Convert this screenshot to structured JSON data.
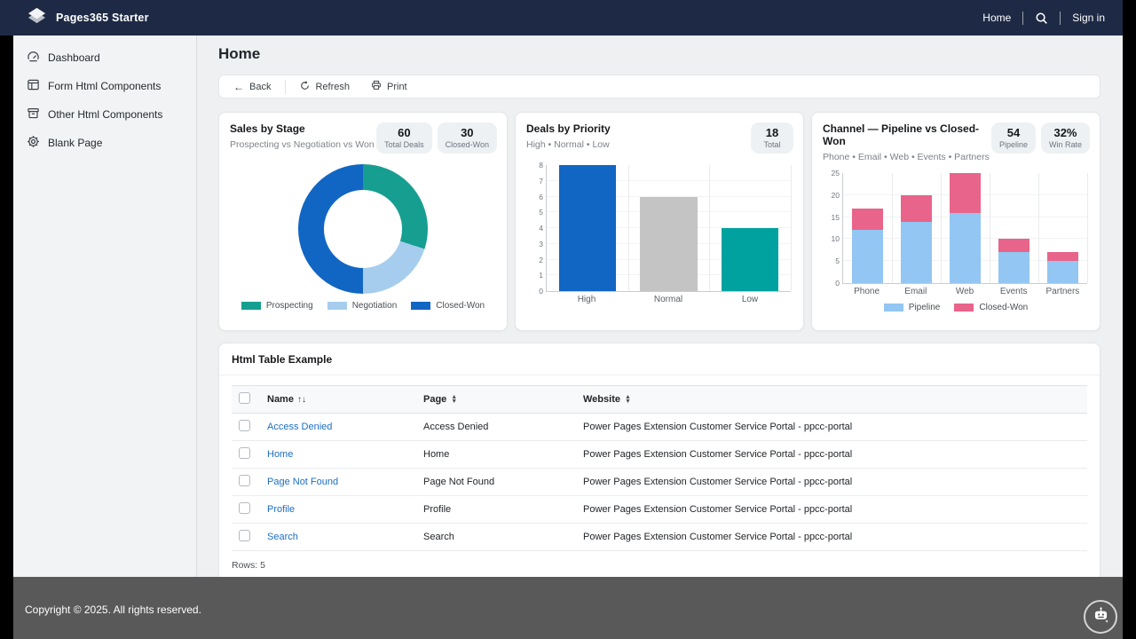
{
  "navbar": {
    "brand": "Pages365 Starter",
    "home_link": "Home",
    "signin_link": "Sign in"
  },
  "sidebar": {
    "items": [
      {
        "label": "Dashboard"
      },
      {
        "label": "Form Html Components"
      },
      {
        "label": "Other Html Components"
      },
      {
        "label": "Blank Page"
      }
    ]
  },
  "page": {
    "title": "Home",
    "toolbar": {
      "back": "Back",
      "refresh": "Refresh",
      "print": "Print"
    }
  },
  "chart_data": [
    {
      "type": "pie",
      "donut": true,
      "title": "Sales by Stage",
      "subtitle": "Prospecting vs Negotiation vs Won",
      "badges": [
        {
          "value": "60",
          "label": "Total Deals"
        },
        {
          "value": "30",
          "label": "Closed-Won"
        }
      ],
      "labels": [
        "Prospecting",
        "Negotiation",
        "Closed-Won"
      ],
      "values": [
        18,
        12,
        30
      ],
      "colors": [
        "#169f90",
        "#a6cdee",
        "#1166c4"
      ],
      "legend_position": "bottom"
    },
    {
      "type": "bar",
      "title": "Deals by Priority",
      "subtitle": "High • Normal • Low",
      "badges": [
        {
          "value": "18",
          "label": "Total"
        }
      ],
      "categories": [
        "High",
        "Normal",
        "Low"
      ],
      "values": [
        8,
        6,
        4
      ],
      "colors": [
        "#1166c4",
        "#c4c4c4",
        "#00a2a0"
      ],
      "ylim": [
        0,
        8
      ],
      "yticks": [
        0,
        1,
        2,
        3,
        4,
        5,
        6,
        7,
        8
      ],
      "grid": true
    },
    {
      "type": "bar",
      "stacked": true,
      "title": "Channel — Pipeline vs Closed-Won",
      "subtitle": "Phone • Email • Web • Events • Partners",
      "badges": [
        {
          "value": "54",
          "label": "Pipeline"
        },
        {
          "value": "32%",
          "label": "Win Rate"
        }
      ],
      "categories": [
        "Phone",
        "Email",
        "Web",
        "Events",
        "Partners"
      ],
      "series": [
        {
          "name": "Pipeline",
          "values": [
            12,
            14,
            16,
            7,
            5
          ],
          "color": "#93c6f2"
        },
        {
          "name": "Closed-Won",
          "values": [
            5,
            6,
            9,
            3,
            2
          ],
          "color": "#e8648a"
        }
      ],
      "ylim": [
        0,
        25
      ],
      "yticks": [
        0,
        5,
        10,
        15,
        20,
        25
      ],
      "grid": true,
      "legend_position": "bottom"
    }
  ],
  "table": {
    "title": "Html Table Example",
    "columns": [
      "Name",
      "Page",
      "Website"
    ],
    "rows": [
      {
        "name": "Access Denied",
        "page": "Access Denied",
        "website": "Power Pages Extension Customer Service Portal - ppcc-portal"
      },
      {
        "name": "Home",
        "page": "Home",
        "website": "Power Pages Extension Customer Service Portal - ppcc-portal"
      },
      {
        "name": "Page Not Found",
        "page": "Page Not Found",
        "website": "Power Pages Extension Customer Service Portal - ppcc-portal"
      },
      {
        "name": "Profile",
        "page": "Profile",
        "website": "Power Pages Extension Customer Service Portal - ppcc-portal"
      },
      {
        "name": "Search",
        "page": "Search",
        "website": "Power Pages Extension Customer Service Portal - ppcc-portal"
      }
    ],
    "rows_count": "Rows: 5"
  },
  "footer": {
    "text": "Copyright © 2025. All rights reserved."
  }
}
